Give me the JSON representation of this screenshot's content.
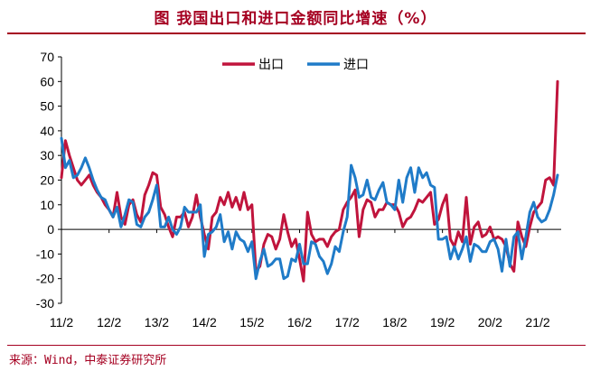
{
  "title": "图  我国出口和进口金额同比增速（%）",
  "source": "来源：Wind，中泰证券研究所",
  "colors": {
    "export": "#c0143c",
    "import": "#1f7bc8",
    "accent": "#a50021"
  },
  "chart_data": {
    "type": "line",
    "title": "图  我国出口和进口金额同比增速（%）",
    "xlabel": "",
    "ylabel": "",
    "ylim": [
      -30,
      70
    ],
    "yticks": [
      70,
      60,
      50,
      40,
      30,
      20,
      10,
      0,
      -10,
      -20,
      -30
    ],
    "x_tick_labels": [
      "11/2",
      "12/2",
      "13/2",
      "14/2",
      "15/2",
      "16/2",
      "17/2",
      "18/2",
      "19/2",
      "20/2",
      "21/2"
    ],
    "x_tick_index": [
      0,
      12,
      24,
      36,
      48,
      60,
      72,
      84,
      96,
      108,
      120
    ],
    "grid": false,
    "legend": "top-center",
    "series": [
      {
        "name": "出口",
        "color": "#c0143c",
        "values": [
          21,
          36,
          30,
          25,
          20,
          18,
          20,
          22,
          18,
          15,
          13,
          10,
          8,
          5,
          15,
          5,
          2,
          10,
          12,
          6,
          3,
          14,
          18,
          23,
          22,
          9,
          6,
          1,
          -3,
          5,
          5,
          7,
          1,
          5,
          14,
          5,
          -2,
          -8,
          5,
          7,
          13,
          10,
          15,
          9,
          13,
          8,
          15,
          8,
          10,
          -17,
          -15,
          -6,
          -2,
          -3,
          -8,
          -4,
          6,
          -1,
          -7,
          -4,
          -12,
          -21,
          7,
          -2,
          -5,
          -4,
          -4,
          -7,
          -3,
          -1,
          0,
          8,
          11,
          13,
          16,
          -3,
          8,
          12,
          11,
          5,
          8,
          8,
          11,
          10,
          10,
          7,
          1,
          4,
          5,
          8,
          12,
          11,
          13,
          15,
          2,
          4,
          10,
          14,
          -4,
          -7,
          -1,
          -5,
          13,
          -6,
          1,
          3,
          -3,
          -2,
          1,
          -4,
          -3,
          -4,
          -7,
          -14,
          -17,
          3,
          -3,
          -7,
          1,
          7,
          9,
          11,
          20,
          21,
          18,
          60
        ]
      },
      {
        "name": "进口",
        "color": "#1f7bc8",
        "values": [
          37,
          25,
          28,
          21,
          22,
          25,
          29,
          25,
          20,
          16,
          13,
          12,
          8,
          5,
          9,
          1,
          6,
          12,
          11,
          2,
          1,
          5,
          7,
          12,
          18,
          1,
          1,
          5,
          0,
          -2,
          1,
          9,
          7,
          7,
          7,
          10,
          -11,
          -2,
          -1,
          1,
          6,
          -5,
          -1,
          -8,
          -1,
          -4,
          -5,
          -9,
          -5,
          -20,
          -13,
          -8,
          -15,
          -14,
          -12,
          -12,
          -20,
          -19,
          -12,
          -13,
          -6,
          -14,
          -14,
          -5,
          -6,
          -11,
          -13,
          -18,
          -14,
          -7,
          -9,
          -1,
          5,
          26,
          21,
          13,
          14,
          20,
          13,
          12,
          16,
          19,
          11,
          10,
          8,
          20,
          11,
          21,
          25,
          15,
          25,
          21,
          23,
          18,
          17,
          -4,
          -4,
          -3,
          -12,
          -7,
          -12,
          -8,
          -3,
          -13,
          -6,
          -7,
          -9,
          -9,
          -5,
          -4,
          -8,
          -17,
          -4,
          -15,
          -3,
          -1,
          -12,
          -3,
          7,
          11,
          5,
          3,
          4,
          8,
          14,
          22
        ]
      }
    ]
  }
}
